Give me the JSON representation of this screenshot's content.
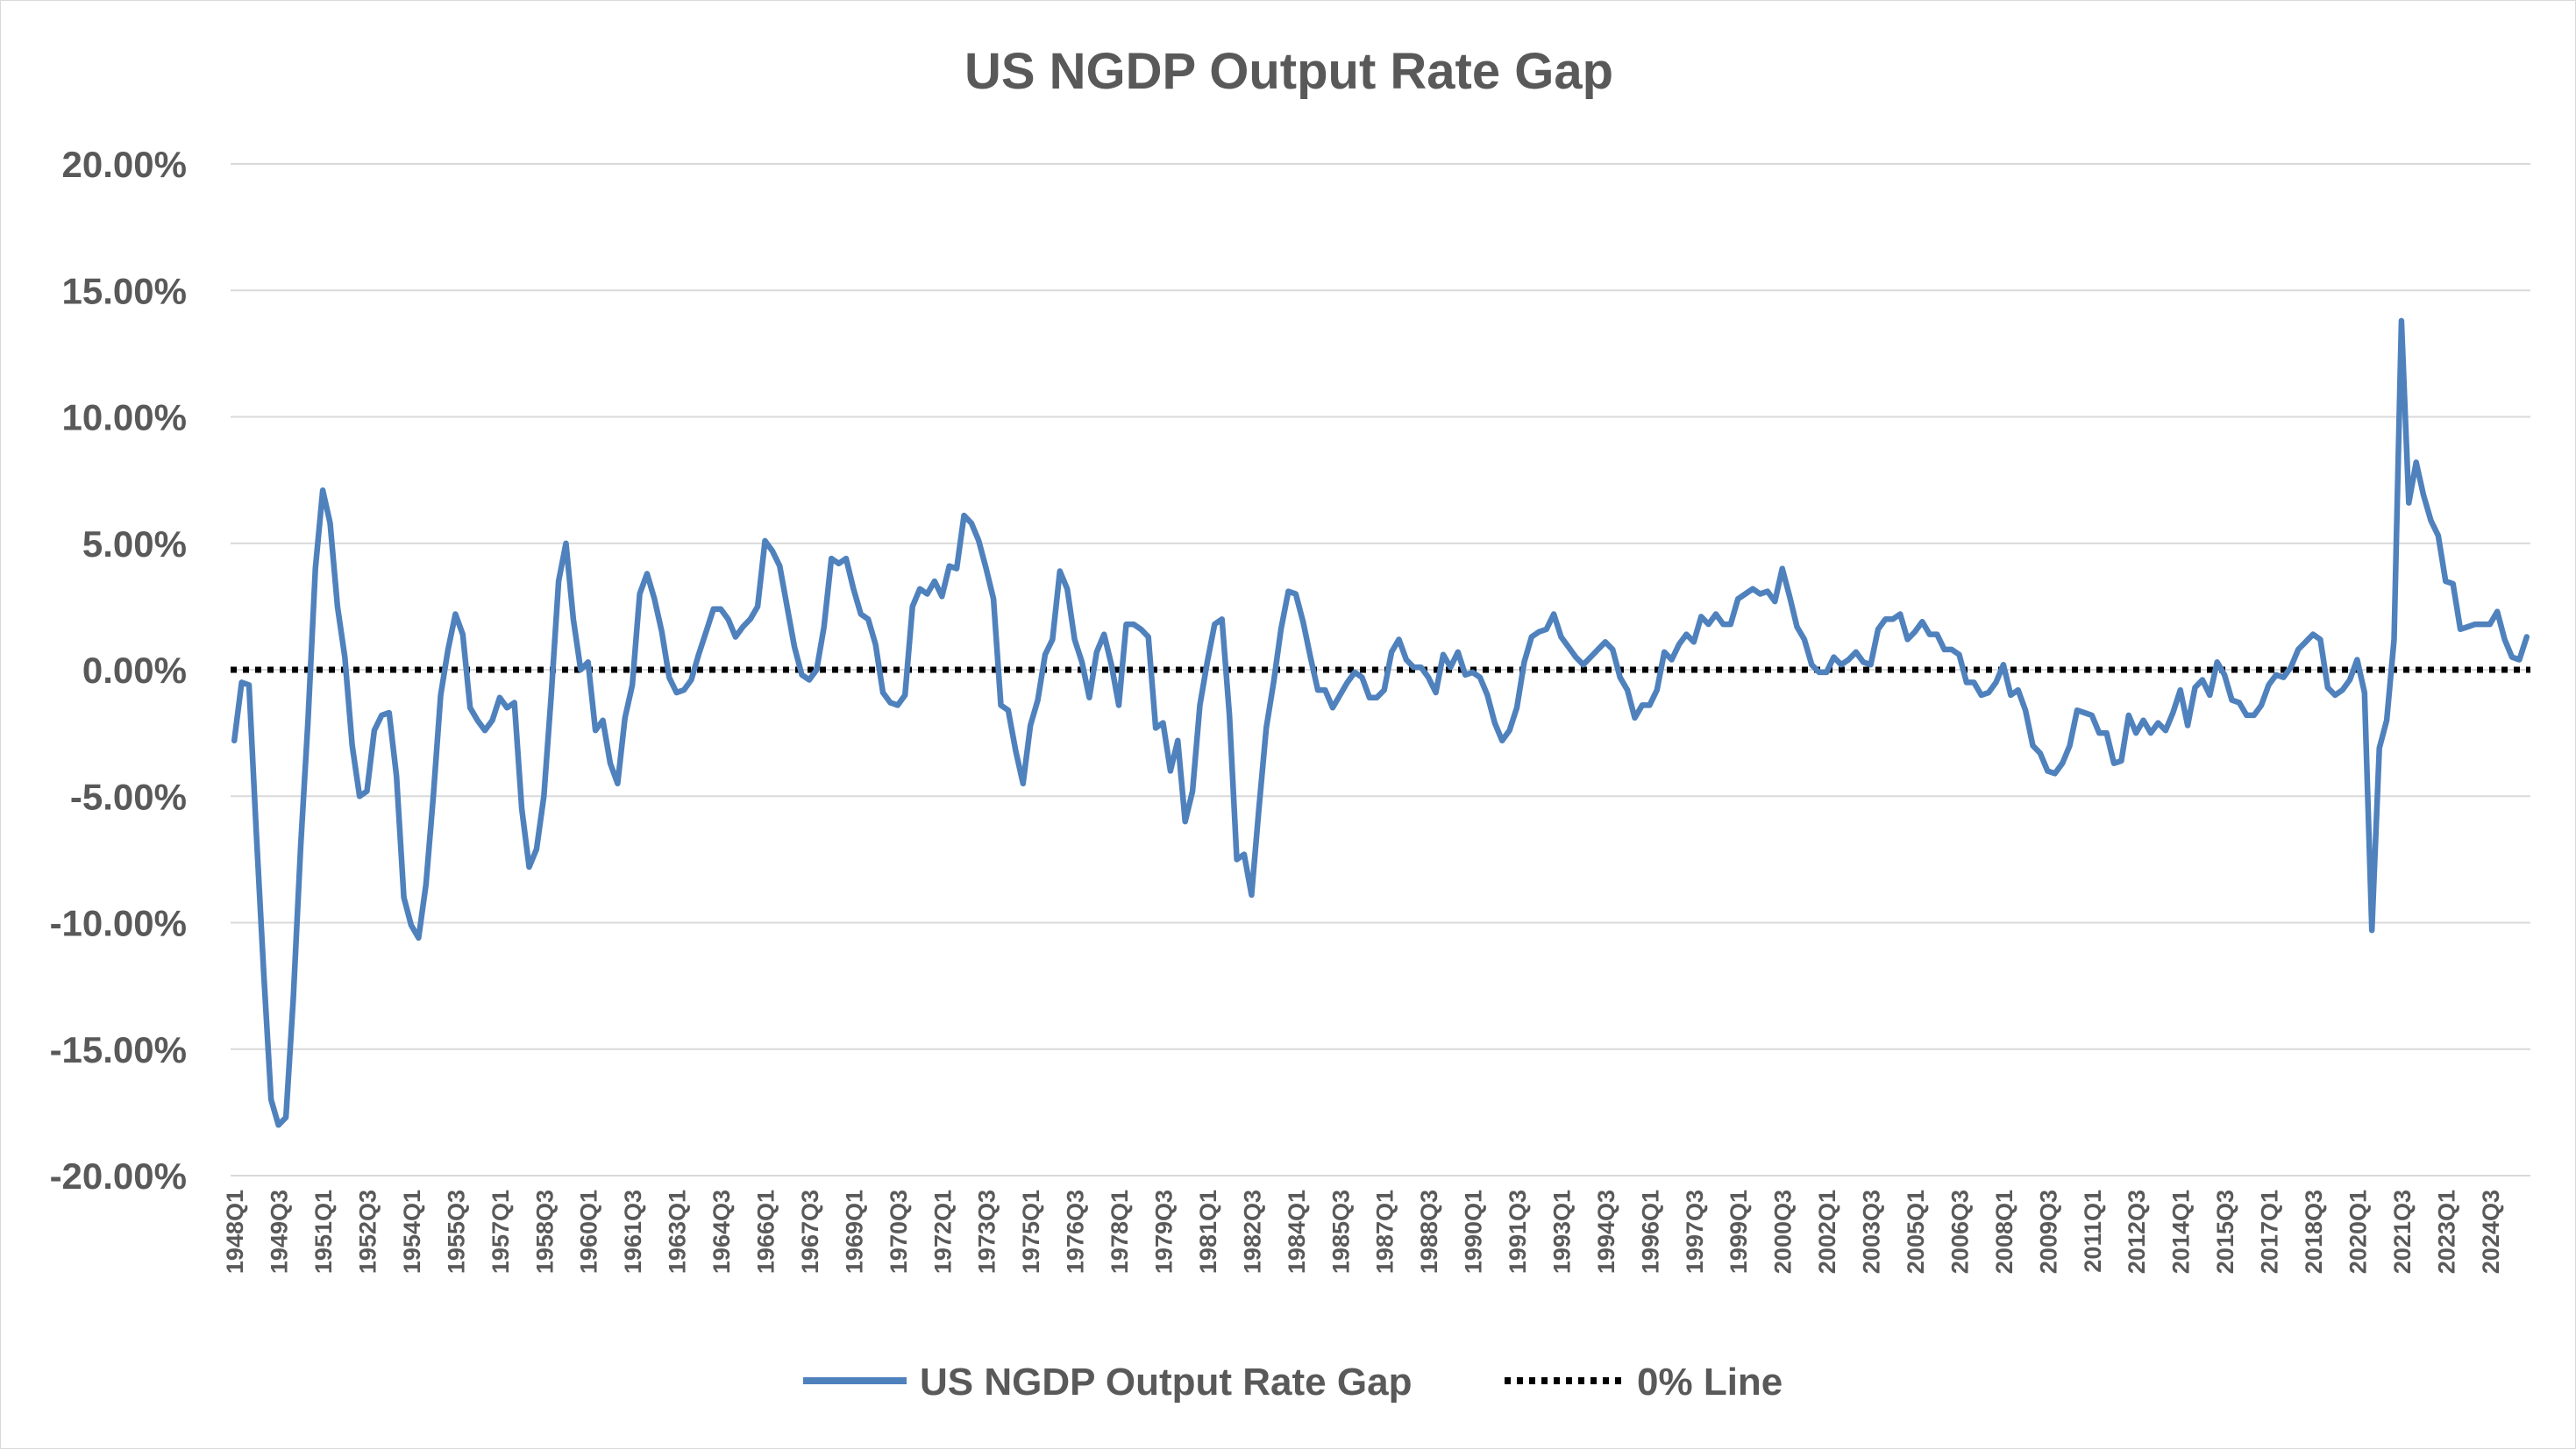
{
  "chart_data": {
    "type": "line",
    "title": "US NGDP Output Rate Gap",
    "xlabel": "",
    "ylabel": "",
    "ylim": [
      -0.2,
      0.2
    ],
    "y_ticks": [
      0.2,
      0.15,
      0.1,
      0.05,
      0.0,
      -0.05,
      -0.1,
      -0.15,
      -0.2
    ],
    "y_tick_labels": [
      "20.00%",
      "15.00%",
      "10.00%",
      "5.00%",
      "0.00%",
      "-5.00%",
      "-10.00%",
      "-15.00%",
      "-20.00%"
    ],
    "grid": true,
    "legend_position": "bottom",
    "x_tick_labels": [
      "1948Q1",
      "1949Q3",
      "1951Q1",
      "1952Q3",
      "1954Q1",
      "1955Q3",
      "1957Q1",
      "1958Q3",
      "1960Q1",
      "1961Q3",
      "1963Q1",
      "1964Q3",
      "1966Q1",
      "1967Q3",
      "1969Q1",
      "1970Q3",
      "1972Q1",
      "1973Q3",
      "1975Q1",
      "1976Q3",
      "1978Q1",
      "1979Q3",
      "1981Q1",
      "1982Q3",
      "1984Q1",
      "1985Q3",
      "1987Q1",
      "1988Q3",
      "1990Q1",
      "1991Q3",
      "1993Q1",
      "1994Q3",
      "1996Q1",
      "1997Q3",
      "1999Q1",
      "2000Q3",
      "2002Q1",
      "2003Q3",
      "2005Q1",
      "2006Q3",
      "2008Q1",
      "2009Q3",
      "2011Q1",
      "2012Q3",
      "2014Q1",
      "2015Q3",
      "2017Q1",
      "2018Q3",
      "2020Q1",
      "2021Q3",
      "2023Q1",
      "2024Q3"
    ],
    "x_tick_step_quarters": 6,
    "x_start_quarter": "1948Q1",
    "series": [
      {
        "name": "US NGDP Output Rate Gap",
        "color": "#4f81bd",
        "style": "solid",
        "anchors": [
          [
            0,
            -2.8
          ],
          [
            1,
            -0.5
          ],
          [
            2,
            -0.6
          ],
          [
            3,
            -6.5
          ],
          [
            4,
            -12
          ],
          [
            5,
            -17
          ],
          [
            6,
            -18
          ],
          [
            7,
            -17.7
          ],
          [
            8,
            -13
          ],
          [
            9,
            -7
          ],
          [
            10,
            -2
          ],
          [
            11,
            4
          ],
          [
            12,
            7.1
          ],
          [
            13,
            5.8
          ],
          [
            14,
            2.5
          ],
          [
            15,
            0.5
          ],
          [
            16,
            -3
          ],
          [
            17,
            -5
          ],
          [
            18,
            -4.8
          ],
          [
            19,
            -2.4
          ],
          [
            20,
            -1.8
          ],
          [
            21,
            -1.7
          ],
          [
            22,
            -4.2
          ],
          [
            23,
            -9
          ],
          [
            24,
            -10.1
          ],
          [
            25,
            -10.6
          ],
          [
            26,
            -8.5
          ],
          [
            27,
            -5
          ],
          [
            28,
            -1
          ],
          [
            29,
            0.8
          ],
          [
            30,
            2.2
          ],
          [
            31,
            1.4
          ],
          [
            32,
            -1.5
          ],
          [
            33,
            -2
          ],
          [
            34,
            -2.4
          ],
          [
            35,
            -2
          ],
          [
            36,
            -1.1
          ],
          [
            37,
            -1.5
          ],
          [
            38,
            -1.3
          ],
          [
            39,
            -5.5
          ],
          [
            40,
            -7.8
          ],
          [
            41,
            -7.1
          ],
          [
            42,
            -5
          ],
          [
            43,
            -1
          ],
          [
            44,
            3.5
          ],
          [
            45,
            5
          ],
          [
            46,
            2
          ],
          [
            47,
            0
          ],
          [
            48,
            0.3
          ],
          [
            49,
            -2.4
          ],
          [
            50,
            -2
          ],
          [
            51,
            -3.7
          ],
          [
            52,
            -4.5
          ],
          [
            53,
            -1.9
          ],
          [
            54,
            -0.6
          ],
          [
            55,
            3
          ],
          [
            56,
            3.8
          ],
          [
            57,
            2.8
          ],
          [
            58,
            1.5
          ],
          [
            59,
            -0.3
          ],
          [
            60,
            -0.9
          ],
          [
            61,
            -0.8
          ],
          [
            62,
            -0.4
          ],
          [
            63,
            0.6
          ],
          [
            64,
            1.5
          ],
          [
            65,
            2.4
          ],
          [
            66,
            2.4
          ],
          [
            67,
            2
          ],
          [
            68,
            1.3
          ],
          [
            69,
            1.7
          ],
          [
            70,
            2
          ],
          [
            71,
            2.5
          ],
          [
            72,
            5.1
          ],
          [
            73,
            4.7
          ],
          [
            74,
            4.1
          ],
          [
            75,
            2.5
          ],
          [
            76,
            0.9
          ],
          [
            77,
            -0.2
          ],
          [
            78,
            -0.4
          ],
          [
            79,
            0
          ],
          [
            80,
            1.7
          ],
          [
            81,
            4.4
          ],
          [
            82,
            4.2
          ],
          [
            83,
            4.4
          ],
          [
            84,
            3.2
          ],
          [
            85,
            2.2
          ],
          [
            86,
            2
          ],
          [
            87,
            1
          ],
          [
            88,
            -0.9
          ],
          [
            89,
            -1.3
          ],
          [
            90,
            -1.4
          ],
          [
            91,
            -1
          ],
          [
            92,
            2.5
          ],
          [
            93,
            3.2
          ],
          [
            94,
            3
          ],
          [
            95,
            3.5
          ],
          [
            96,
            2.9
          ],
          [
            97,
            4.1
          ],
          [
            98,
            4
          ],
          [
            99,
            6.1
          ],
          [
            100,
            5.8
          ],
          [
            101,
            5.1
          ],
          [
            102,
            4
          ],
          [
            103,
            2.8
          ],
          [
            104,
            -1.4
          ],
          [
            105,
            -1.6
          ],
          [
            106,
            -3.2
          ],
          [
            107,
            -4.5
          ],
          [
            108,
            -2.2
          ],
          [
            109,
            -1.2
          ],
          [
            110,
            0.6
          ],
          [
            111,
            1.2
          ],
          [
            112,
            3.9
          ],
          [
            113,
            3.2
          ],
          [
            114,
            1.2
          ],
          [
            115,
            0.3
          ],
          [
            116,
            -1.1
          ],
          [
            117,
            0.7
          ],
          [
            118,
            1.4
          ],
          [
            119,
            0.2
          ],
          [
            120,
            -1.4
          ],
          [
            121,
            1.8
          ],
          [
            122,
            1.8
          ],
          [
            123,
            1.6
          ],
          [
            124,
            1.3
          ],
          [
            125,
            -2.3
          ],
          [
            126,
            -2.1
          ],
          [
            127,
            -4
          ],
          [
            128,
            -2.8
          ],
          [
            129,
            -6
          ],
          [
            130,
            -4.8
          ],
          [
            131,
            -1.4
          ],
          [
            132,
            0.3
          ],
          [
            133,
            1.8
          ],
          [
            134,
            2
          ],
          [
            135,
            -1.8
          ],
          [
            136,
            -7.5
          ],
          [
            137,
            -7.3
          ],
          [
            138,
            -8.9
          ],
          [
            139,
            -5.5
          ],
          [
            140,
            -2.3
          ],
          [
            141,
            -0.5
          ],
          [
            142,
            1.6
          ],
          [
            143,
            3.1
          ],
          [
            144,
            3
          ],
          [
            145,
            1.9
          ],
          [
            146,
            0.5
          ],
          [
            147,
            -0.8
          ],
          [
            148,
            -0.8
          ],
          [
            149,
            -1.5
          ],
          [
            150,
            -1
          ],
          [
            151,
            -0.5
          ],
          [
            152,
            -0.1
          ],
          [
            153,
            -0.3
          ],
          [
            154,
            -1.1
          ],
          [
            155,
            -1.1
          ],
          [
            156,
            -0.8
          ],
          [
            157,
            0.7
          ],
          [
            158,
            1.2
          ],
          [
            159,
            0.4
          ],
          [
            160,
            0.1
          ],
          [
            161,
            0.1
          ],
          [
            162,
            -0.3
          ],
          [
            163,
            -0.9
          ],
          [
            164,
            0.6
          ],
          [
            165,
            0.1
          ],
          [
            166,
            0.7
          ],
          [
            167,
            -0.2
          ],
          [
            168,
            -0.1
          ],
          [
            169,
            -0.3
          ],
          [
            170,
            -1
          ],
          [
            171,
            -2.1
          ],
          [
            172,
            -2.8
          ],
          [
            173,
            -2.4
          ],
          [
            174,
            -1.5
          ],
          [
            175,
            0.3
          ],
          [
            176,
            1.3
          ],
          [
            177,
            1.5
          ],
          [
            178,
            1.6
          ],
          [
            179,
            2.2
          ],
          [
            180,
            1.3
          ],
          [
            181,
            0.9
          ],
          [
            182,
            0.5
          ],
          [
            183,
            0.2
          ],
          [
            184,
            0.5
          ],
          [
            185,
            0.8
          ],
          [
            186,
            1.1
          ],
          [
            187,
            0.8
          ],
          [
            188,
            -0.3
          ],
          [
            189,
            -0.8
          ],
          [
            190,
            -1.9
          ],
          [
            191,
            -1.4
          ],
          [
            192,
            -1.4
          ],
          [
            193,
            -0.8
          ],
          [
            194,
            0.7
          ],
          [
            195,
            0.4
          ],
          [
            196,
            1
          ],
          [
            197,
            1.4
          ],
          [
            198,
            1.1
          ],
          [
            199,
            2.1
          ],
          [
            200,
            1.8
          ],
          [
            201,
            2.2
          ],
          [
            202,
            1.8
          ],
          [
            203,
            1.8
          ],
          [
            204,
            2.8
          ],
          [
            205,
            3
          ],
          [
            206,
            3.2
          ],
          [
            207,
            3
          ],
          [
            208,
            3.1
          ],
          [
            209,
            2.7
          ],
          [
            210,
            4
          ],
          [
            211,
            2.9
          ],
          [
            212,
            1.7
          ],
          [
            213,
            1.2
          ],
          [
            214,
            0.2
          ],
          [
            215,
            -0.1
          ],
          [
            216,
            -0.1
          ],
          [
            217,
            0.5
          ],
          [
            218,
            0.2
          ],
          [
            219,
            0.4
          ],
          [
            220,
            0.7
          ],
          [
            221,
            0.3
          ],
          [
            222,
            0.2
          ],
          [
            223,
            1.6
          ],
          [
            224,
            2
          ],
          [
            225,
            2
          ],
          [
            226,
            2.2
          ],
          [
            227,
            1.2
          ],
          [
            228,
            1.5
          ],
          [
            229,
            1.9
          ],
          [
            230,
            1.4
          ],
          [
            231,
            1.4
          ],
          [
            232,
            0.8
          ],
          [
            233,
            0.8
          ],
          [
            234,
            0.6
          ],
          [
            235,
            -0.5
          ],
          [
            236,
            -0.5
          ],
          [
            237,
            -1
          ],
          [
            238,
            -0.9
          ],
          [
            239,
            -0.5
          ],
          [
            240,
            0.2
          ],
          [
            241,
            -1
          ],
          [
            242,
            -0.8
          ],
          [
            243,
            -1.6
          ],
          [
            244,
            -3
          ],
          [
            245,
            -3.3
          ],
          [
            246,
            -4
          ],
          [
            247,
            -4.1
          ],
          [
            248,
            -3.7
          ],
          [
            249,
            -3
          ],
          [
            250,
            -1.6
          ],
          [
            251,
            -1.7
          ],
          [
            252,
            -1.8
          ],
          [
            253,
            -2.5
          ],
          [
            254,
            -2.5
          ],
          [
            255,
            -3.7
          ],
          [
            256,
            -3.6
          ],
          [
            257,
            -1.8
          ],
          [
            258,
            -2.5
          ],
          [
            259,
            -2
          ],
          [
            260,
            -2.5
          ],
          [
            261,
            -2.1
          ],
          [
            262,
            -2.4
          ],
          [
            263,
            -1.7
          ],
          [
            264,
            -0.8
          ],
          [
            265,
            -2.2
          ],
          [
            266,
            -0.7
          ],
          [
            267,
            -0.4
          ],
          [
            268,
            -1
          ],
          [
            269,
            0.3
          ],
          [
            270,
            -0.2
          ],
          [
            271,
            -1.2
          ],
          [
            272,
            -1.3
          ],
          [
            273,
            -1.8
          ],
          [
            274,
            -1.8
          ],
          [
            275,
            -1.4
          ],
          [
            276,
            -0.6
          ],
          [
            277,
            -0.2
          ],
          [
            278,
            -0.3
          ],
          [
            279,
            0.1
          ],
          [
            280,
            0.8
          ],
          [
            281,
            1.1
          ],
          [
            282,
            1.4
          ],
          [
            283,
            1.2
          ],
          [
            284,
            -0.7
          ],
          [
            285,
            -1
          ],
          [
            286,
            -0.8
          ],
          [
            287,
            -0.4
          ],
          [
            288,
            0.4
          ],
          [
            289,
            -0.9
          ],
          [
            290,
            -10.3
          ],
          [
            291,
            -3.1
          ],
          [
            292,
            -2
          ],
          [
            293,
            1.2
          ],
          [
            294,
            13.8
          ],
          [
            295,
            6.6
          ],
          [
            296,
            8.2
          ],
          [
            297,
            6.9
          ],
          [
            298,
            5.9
          ],
          [
            299,
            5.3
          ],
          [
            300,
            3.5
          ],
          [
            301,
            3.4
          ],
          [
            302,
            1.6
          ],
          [
            303,
            1.7
          ],
          [
            304,
            1.8
          ],
          [
            305,
            1.8
          ],
          [
            306,
            1.8
          ],
          [
            307,
            2.3
          ],
          [
            308,
            1.2
          ],
          [
            309,
            0.5
          ],
          [
            310,
            0.4
          ],
          [
            311,
            1.3
          ]
        ]
      },
      {
        "name": "0% Line",
        "color": "#000000",
        "style": "dotted",
        "value": 0.0
      }
    ]
  }
}
